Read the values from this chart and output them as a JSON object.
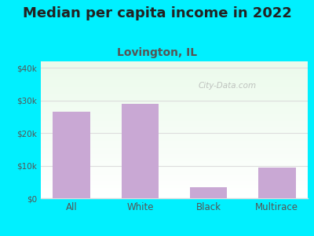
{
  "title": "Median per capita income in 2022",
  "subtitle": "Lovington, IL",
  "categories": [
    "All",
    "White",
    "Black",
    "Multirace"
  ],
  "values": [
    26500,
    29000,
    3500,
    9500
  ],
  "bar_color": "#c9a8d4",
  "title_fontsize": 13,
  "subtitle_fontsize": 10,
  "subtitle_color": "#555555",
  "title_color": "#222222",
  "background_outer": "#00f0ff",
  "ylim": [
    0,
    42000
  ],
  "yticks": [
    0,
    10000,
    20000,
    30000,
    40000
  ],
  "ytick_labels": [
    "$0",
    "$10k",
    "$20k",
    "$30k",
    "$40k"
  ],
  "watermark": "City-Data.com",
  "watermark_color": "#aaaaaa",
  "grid_color": "#dddddd",
  "tick_color": "#555555",
  "bar_width": 0.55
}
